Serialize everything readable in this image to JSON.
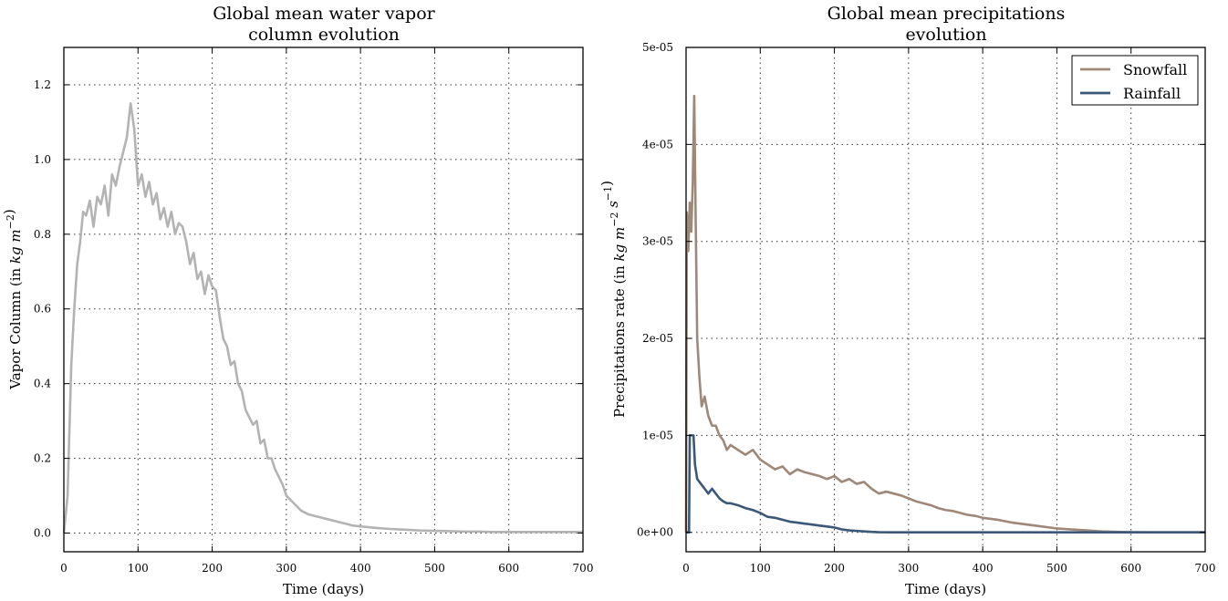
{
  "chart_data": [
    {
      "type": "line",
      "title": "Global mean water vapor\ncolumn evolution",
      "xlabel": "Time (days)",
      "ylabel": "Vapor Column (in kg m^-2)",
      "xlim": [
        0,
        700
      ],
      "ylim": [
        -0.05,
        1.3
      ],
      "x_ticks": [
        "0",
        "100",
        "200",
        "300",
        "400",
        "500",
        "600",
        "700"
      ],
      "y_ticks": [
        "0.0",
        "0.2",
        "0.4",
        "0.6",
        "0.8",
        "1.0",
        "1.2"
      ],
      "grid": true,
      "series": [
        {
          "name": "",
          "color": "#b3b3b3",
          "x": [
            0,
            5,
            10,
            14,
            18,
            22,
            26,
            30,
            35,
            40,
            45,
            50,
            55,
            60,
            65,
            70,
            75,
            80,
            85,
            90,
            95,
            100,
            105,
            110,
            115,
            120,
            125,
            130,
            135,
            140,
            145,
            150,
            155,
            160,
            165,
            170,
            175,
            180,
            185,
            190,
            195,
            200,
            205,
            210,
            215,
            220,
            225,
            230,
            235,
            240,
            245,
            250,
            255,
            260,
            265,
            270,
            275,
            280,
            285,
            290,
            295,
            300,
            310,
            320,
            330,
            340,
            350,
            360,
            370,
            380,
            390,
            400,
            420,
            440,
            460,
            480,
            500,
            520,
            540,
            560,
            580,
            600,
            620,
            640,
            660,
            680,
            700
          ],
          "y": [
            0.0,
            0.1,
            0.45,
            0.6,
            0.72,
            0.78,
            0.86,
            0.85,
            0.89,
            0.82,
            0.9,
            0.88,
            0.93,
            0.85,
            0.96,
            0.93,
            0.98,
            1.02,
            1.06,
            1.15,
            1.08,
            0.93,
            0.96,
            0.9,
            0.94,
            0.88,
            0.91,
            0.84,
            0.87,
            0.82,
            0.86,
            0.8,
            0.83,
            0.82,
            0.78,
            0.72,
            0.75,
            0.68,
            0.7,
            0.64,
            0.69,
            0.66,
            0.65,
            0.58,
            0.52,
            0.5,
            0.45,
            0.46,
            0.4,
            0.38,
            0.33,
            0.31,
            0.29,
            0.3,
            0.24,
            0.25,
            0.2,
            0.2,
            0.17,
            0.15,
            0.13,
            0.1,
            0.08,
            0.06,
            0.05,
            0.045,
            0.04,
            0.035,
            0.03,
            0.025,
            0.02,
            0.018,
            0.014,
            0.011,
            0.009,
            0.007,
            0.006,
            0.005,
            0.004,
            0.004,
            0.003,
            0.003,
            0.003,
            0.003,
            0.003,
            0.003,
            0.003
          ]
        }
      ]
    },
    {
      "type": "line",
      "title": "Global mean precipitations\nevolution",
      "xlabel": "Time (days)",
      "ylabel": "Precipitations rate (in kg m^-2 s^-1)",
      "xlim": [
        0,
        700
      ],
      "ylim": [
        -2e-06,
        5e-05
      ],
      "x_ticks": [
        "0",
        "100",
        "200",
        "300",
        "400",
        "500",
        "600",
        "700"
      ],
      "y_ticks": [
        "0e+00",
        "1e-05",
        "2e-05",
        "3e-05",
        "4e-05",
        "5e-05"
      ],
      "grid": true,
      "legend_position": "top-right",
      "series": [
        {
          "name": "Snowfall",
          "color": "#a08878",
          "x": [
            0,
            1,
            3,
            5,
            7,
            9,
            11,
            13,
            15,
            18,
            21,
            25,
            30,
            35,
            40,
            45,
            50,
            55,
            60,
            70,
            80,
            90,
            100,
            110,
            120,
            130,
            140,
            150,
            160,
            170,
            180,
            190,
            200,
            210,
            220,
            230,
            240,
            250,
            260,
            270,
            280,
            290,
            300,
            310,
            320,
            330,
            340,
            350,
            360,
            370,
            380,
            390,
            400,
            410,
            420,
            440,
            460,
            480,
            500,
            520,
            540,
            560,
            580,
            600,
            640,
            680,
            700
          ],
          "y": [
            0,
            3.3e-05,
            2.9e-05,
            3.4e-05,
            3.1e-05,
            3.6e-05,
            4.5e-05,
            3.2e-05,
            2e-05,
            1.6e-05,
            1.3e-05,
            1.4e-05,
            1.2e-05,
            1.1e-05,
            1.1e-05,
            1e-05,
            9.5e-06,
            8.5e-06,
            9e-06,
            8.5e-06,
            8e-06,
            8.5e-06,
            7.5e-06,
            7e-06,
            6.5e-06,
            6.8e-06,
            6e-06,
            6.5e-06,
            6.2e-06,
            6e-06,
            5.8e-06,
            5.5e-06,
            5.8e-06,
            5.2e-06,
            5.5e-06,
            5e-06,
            5.2e-06,
            4.5e-06,
            4e-06,
            4.2e-06,
            4e-06,
            3.8e-06,
            3.5e-06,
            3.2e-06,
            3e-06,
            2.8e-06,
            2.5e-06,
            2.3e-06,
            2.2e-06,
            2e-06,
            1.8e-06,
            1.7e-06,
            1.5e-06,
            1.4e-06,
            1.3e-06,
            1e-06,
            8e-07,
            6e-07,
            4e-07,
            3e-07,
            2e-07,
            1e-07,
            5e-08,
            2e-08,
            1e-08,
            0,
            0
          ]
        },
        {
          "name": "Rainfall",
          "color": "#3b5878",
          "x": [
            0,
            4,
            5,
            8,
            10,
            12,
            15,
            20,
            25,
            30,
            35,
            40,
            45,
            50,
            55,
            60,
            70,
            80,
            90,
            100,
            110,
            120,
            130,
            140,
            150,
            160,
            170,
            180,
            190,
            200,
            210,
            220,
            230,
            240,
            250,
            260,
            280,
            300,
            350,
            400,
            500,
            600,
            700
          ],
          "y": [
            0,
            0,
            1e-05,
            1e-05,
            1e-05,
            7e-06,
            5.5e-06,
            5e-06,
            4.5e-06,
            4e-06,
            4.5e-06,
            4e-06,
            3.5e-06,
            3.2e-06,
            3e-06,
            3e-06,
            2.8e-06,
            2.5e-06,
            2.3e-06,
            2e-06,
            1.6e-06,
            1.5e-06,
            1.3e-06,
            1.1e-06,
            1e-06,
            9e-07,
            8e-07,
            7e-07,
            6e-07,
            5e-07,
            3e-07,
            2e-07,
            1.5e-07,
            1e-07,
            5e-08,
            2e-08,
            0,
            0,
            0,
            0,
            0,
            0,
            0
          ]
        }
      ]
    }
  ]
}
